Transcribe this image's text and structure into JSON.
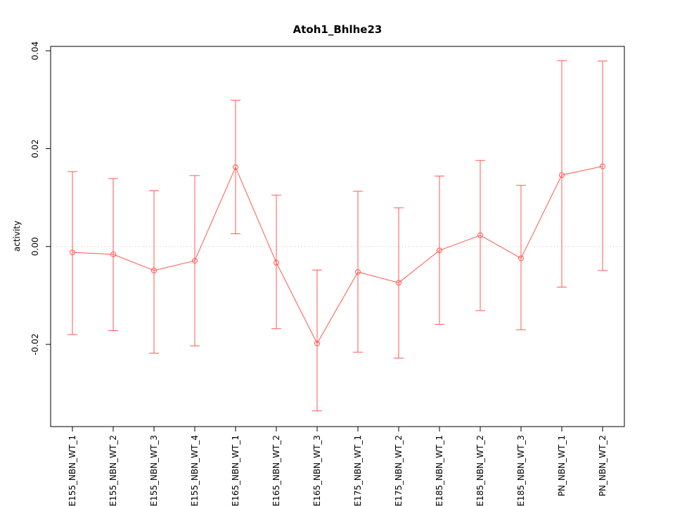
{
  "chart_data": {
    "type": "line",
    "title": "Atoh1_Bhlhe23",
    "xlabel": "",
    "ylabel": "activity",
    "ylim": [
      -0.0368,
      0.0409
    ],
    "yticks": [
      -0.02,
      0,
      0.02,
      0.04
    ],
    "ytick_labels": [
      "-0.02",
      "0.00",
      "0.02",
      "0.04"
    ],
    "categories": [
      "E155_NBN_WT_1",
      "E155_NBN_WT_2",
      "E155_NBN_WT_3",
      "E155_NBN_WT_4",
      "E165_NBN_WT_1",
      "E165_NBN_WT_2",
      "E165_NBN_WT_3",
      "E175_NBN_WT_1",
      "E175_NBN_WT_2",
      "E185_NBN_WT_1",
      "E185_NBN_WT_2",
      "E185_NBN_WT_3",
      "PN_NBN_WT_1",
      "PN_NBN_WT_2"
    ],
    "series": [
      {
        "name": "activity",
        "color": "#ff5a52",
        "point_style": "open-circle",
        "values": [
          -0.0012,
          -0.0016,
          -0.0049,
          -0.0029,
          0.0162,
          -0.0033,
          -0.0198,
          -0.0052,
          -0.0074,
          -0.0008,
          0.0023,
          -0.0024,
          0.0146,
          0.0164
        ],
        "upper": [
          0.0153,
          0.0139,
          0.0114,
          0.0145,
          0.0299,
          0.0105,
          -0.0048,
          0.0113,
          0.0079,
          0.0144,
          0.0176,
          0.0125,
          0.038,
          0.0379
        ],
        "lower": [
          -0.018,
          -0.0172,
          -0.0218,
          -0.0203,
          0.0026,
          -0.0168,
          -0.0336,
          -0.0216,
          -0.0228,
          -0.0159,
          -0.0131,
          -0.017,
          -0.0083,
          -0.0049
        ]
      }
    ],
    "reference_line": {
      "y": 0,
      "color": "#cccccc",
      "style": "dotted"
    },
    "grid": false,
    "legend_position": "none",
    "axis_color": "#000000",
    "background": "#ffffff"
  }
}
